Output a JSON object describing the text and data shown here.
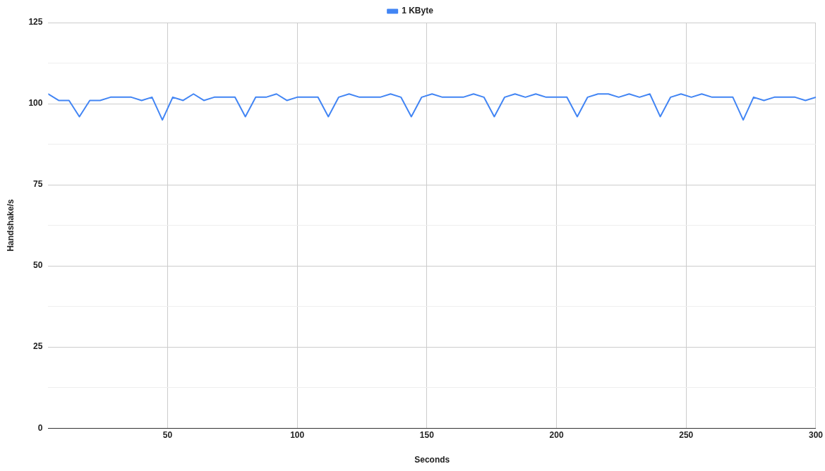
{
  "chart_data": {
    "type": "line",
    "xlabel": "Seconds",
    "ylabel": "Handshake/s",
    "x": [
      4,
      8,
      12,
      16,
      20,
      24,
      28,
      32,
      36,
      40,
      44,
      48,
      52,
      56,
      60,
      64,
      68,
      72,
      76,
      80,
      84,
      88,
      92,
      96,
      100,
      104,
      108,
      112,
      116,
      120,
      124,
      128,
      132,
      136,
      140,
      144,
      148,
      152,
      156,
      160,
      164,
      168,
      172,
      176,
      180,
      184,
      188,
      192,
      196,
      200,
      204,
      208,
      212,
      216,
      220,
      224,
      228,
      232,
      236,
      240,
      244,
      248,
      252,
      256,
      260,
      264,
      268,
      272,
      276,
      280,
      284,
      288,
      292,
      296,
      300
    ],
    "series": [
      {
        "name": "1 KByte",
        "color": "#4285f4",
        "values": [
          103,
          101,
          101,
          96,
          101,
          101,
          102,
          102,
          102,
          101,
          102,
          95,
          102,
          101,
          103,
          101,
          102,
          102,
          102,
          96,
          102,
          102,
          103,
          101,
          102,
          102,
          102,
          96,
          102,
          103,
          102,
          102,
          102,
          103,
          102,
          96,
          102,
          103,
          102,
          102,
          102,
          103,
          102,
          96,
          102,
          103,
          102,
          103,
          102,
          102,
          102,
          96,
          102,
          103,
          103,
          102,
          103,
          102,
          103,
          96,
          102,
          103,
          102,
          103,
          102,
          102,
          102,
          95,
          102,
          101,
          102,
          102,
          102,
          101,
          102
        ]
      }
    ],
    "xlim": [
      4,
      300
    ],
    "xticks": [
      50,
      100,
      150,
      200,
      250,
      300
    ],
    "ylim": [
      0,
      125
    ],
    "yticks": [
      0,
      {
        "value": 12.5,
        "label": null
      },
      25,
      {
        "value": 37.5,
        "label": null
      },
      50,
      {
        "value": 62.5,
        "label": null
      },
      75,
      {
        "value": 87.5,
        "label": null
      },
      100,
      {
        "value": 112.5,
        "label": null
      },
      125
    ],
    "grid": true,
    "legend": "top",
    "marker": "none",
    "line_style": "solid"
  }
}
